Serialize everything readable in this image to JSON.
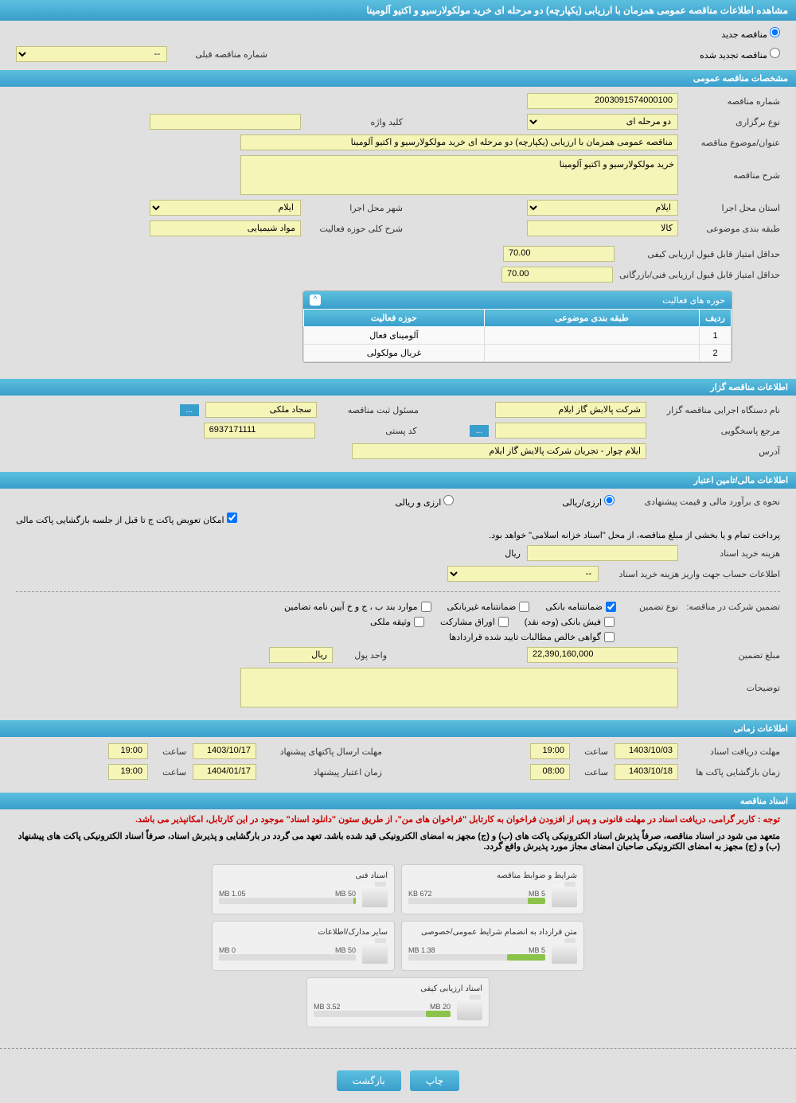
{
  "header": {
    "title": "مشاهده اطلاعات مناقصه عمومی همزمان با ارزیابی (یکپارچه) دو مرحله ای خرید مولکولارسیو و اکتیو آلومینا"
  },
  "top_options": {
    "opt1": "مناقصه جدید",
    "opt2": "مناقصه تجدید شده",
    "prev_label": "شماره مناقصه قبلی",
    "prev_value": "--"
  },
  "section1": {
    "title": "مشخصات مناقصه عمومی",
    "tender_no_label": "شماره مناقصه",
    "tender_no": "2003091574000100",
    "type_label": "نوع برگزاری",
    "type": "دو مرحله ای",
    "keyword_label": "کلید واژه",
    "keyword": "",
    "subject_label": "عنوان/موضوع مناقصه",
    "subject": "مناقصه عمومی همزمان با ارزیابی (یکپارچه) دو مرحله ای خرید مولکولارسیو و اکتیو آلومینا",
    "desc_label": "شرح مناقصه",
    "desc": "خرید مولکولارسیو و اکتیو آلومینا",
    "province_label": "استان محل اجرا",
    "province": "ایلام",
    "city_label": "شهر محل اجرا",
    "city": "ایلام",
    "category_label": "طبقه بندی موضوعی",
    "category": "کالا",
    "activity_label": "شرح کلی حوزه فعالیت",
    "activity": "مواد شیمیایی",
    "score1_label": "حداقل امتیاز قابل قبول ارزیابی کیفی",
    "score1": "70.00",
    "score2_label": "حداقل امتیاز قابل قبول ارزیابی فنی/بازرگانی",
    "score2": "70.00"
  },
  "activity_table": {
    "title": "حوزه های فعالیت",
    "col1": "ردیف",
    "col2": "طبقه بندی موضوعی",
    "col3": "حوزه فعالیت",
    "rows": [
      {
        "n": "1",
        "cat": "",
        "act": "آلومینای فعال"
      },
      {
        "n": "2",
        "cat": "",
        "act": "غربال مولکولی"
      }
    ]
  },
  "section2": {
    "title": "اطلاعات مناقصه گزار",
    "org_label": "نام دستگاه اجرایی مناقصه گزار",
    "org": "شرکت پالایش گاز ایلام",
    "reg_label": "مسئول ثبت مناقصه",
    "reg": "سجاد ملکی",
    "resp_label": "مرجع پاسخگویی",
    "resp": "",
    "postal_label": "کد پستی",
    "postal": "6937171111",
    "addr_label": "آدرس",
    "addr": "ایلام چوار - تجریان شرکت پالایش گاز ایلام"
  },
  "section3": {
    "title": "اطلاعات مالی/تامین اعتبار",
    "est_label": "نحوه ی برآورد مالی و قیمت پیشنهادی",
    "est_opt1": "ارزی/ریالی",
    "est_opt2": "ارزی و ریالی",
    "swap_label": "امکان تعویض پاکت ج تا قبل از جلسه بازگشایی پاکت مالی",
    "pay_note": "پرداخت تمام و یا بخشی از مبلغ مناقصه، از محل \"اسناد خزانه اسلامی\" خواهد بود.",
    "cost_label": "هزینه خرید اسناد",
    "cost_unit": "ریال",
    "acct_label": "اطلاعات حساب جهت واریز هزینه خرید اسناد",
    "acct": "--",
    "guarantee_label": "تضمین شرکت در مناقصه:",
    "guarantee_type_label": "نوع تضمین",
    "g1": "ضمانتنامه بانکی",
    "g2": "ضمانتنامه غیربانکی",
    "g3": "موارد بند ب ، ج و خ آیین نامه تضامین",
    "g4": "فیش بانکی (وجه نقد)",
    "g5": "اوراق مشارکت",
    "g6": "وثیقه ملکی",
    "g7": "گواهی خالص مطالبات تایید شده قراردادها",
    "amount_label": "مبلغ تضمین",
    "amount": "22,390,160,000",
    "unit_label": "واحد پول",
    "unit": "ریال",
    "notes_label": "توضیحات"
  },
  "section4": {
    "title": "اطلاعات زمانی",
    "deadline1_label": "مهلت دریافت اسناد",
    "deadline1_date": "1403/10/03",
    "deadline1_time": "19:00",
    "deadline2_label": "مهلت ارسال پاکتهای پیشنهاد",
    "deadline2_date": "1403/10/17",
    "deadline2_time": "19:00",
    "open_label": "زمان بازگشایی پاکت ها",
    "open_date": "1403/10/18",
    "open_time": "08:00",
    "valid_label": "زمان اعتبار پیشنهاد",
    "valid_date": "1404/01/17",
    "valid_time": "19:00",
    "time_label": "ساعت"
  },
  "section5": {
    "title": "اسناد مناقصه",
    "notice1": "توجه : کاربر گرامی، دریافت اسناد در مهلت قانونی و پس از افزودن فراخوان به کارتابل \"فراخوان های من\"، از طریق ستون \"دانلود اسناد\" موجود در این کارتابل، امکانپذیر می باشد.",
    "notice2": "متعهد می شود در اسناد مناقصه، صرفاً پذیرش اسناد الکترونیکی پاکت های (ب) و (ج) مجهز به امضای الکترونیکی قید شده باشد. تعهد می گردد در بارگشایی و پذیرش اسناد، صرفاً اسناد الکترونیکی پاکت های پیشنهاد (ب) و (ج) مجهز به امضای الکترونیکی صاحبان امضای مجاز مورد پذیرش واقع گردد.",
    "files": [
      {
        "title": "شرایط و ضوابط مناقصه",
        "used": "672 KB",
        "total": "5 MB",
        "pct": 13
      },
      {
        "title": "اسناد فنی",
        "used": "1.05 MB",
        "total": "50 MB",
        "pct": 2
      },
      {
        "title": "متن قرارداد به انضمام شرایط عمومی/خصوصی",
        "used": "1.38 MB",
        "total": "5 MB",
        "pct": 28
      },
      {
        "title": "سایر مدارک/اطلاعات",
        "used": "0 MB",
        "total": "50 MB",
        "pct": 0
      },
      {
        "title": "اسناد ارزیابی کیفی",
        "used": "3.52 MB",
        "total": "20 MB",
        "pct": 18
      }
    ]
  },
  "buttons": {
    "print": "چاپ",
    "back": "بازگشت"
  }
}
